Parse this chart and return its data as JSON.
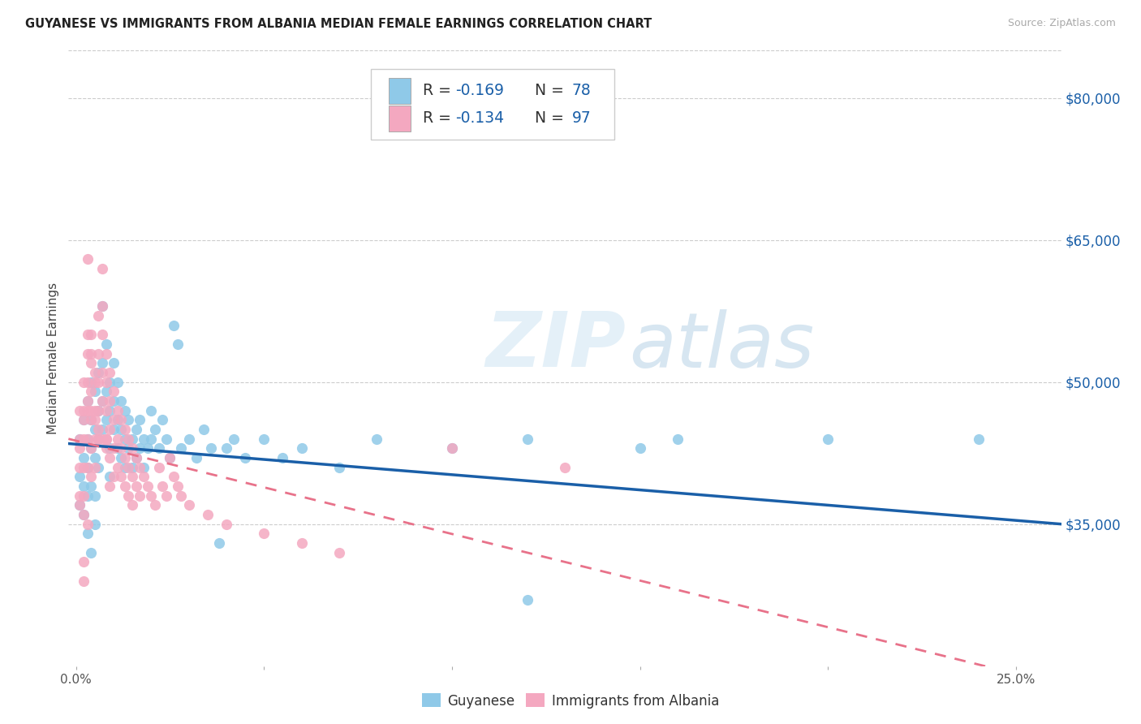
{
  "title": "GUYANESE VS IMMIGRANTS FROM ALBANIA MEDIAN FEMALE EARNINGS CORRELATION CHART",
  "source": "Source: ZipAtlas.com",
  "ylabel": "Median Female Earnings",
  "ytick_labels": [
    "$35,000",
    "$50,000",
    "$65,000",
    "$80,000"
  ],
  "ytick_vals": [
    35000,
    50000,
    65000,
    80000
  ],
  "ylim": [
    20000,
    85000
  ],
  "xlim": [
    -0.002,
    0.262
  ],
  "xtick_vals": [
    0.0,
    0.05,
    0.1,
    0.15,
    0.2,
    0.25
  ],
  "xtick_labels": [
    "0.0%",
    "",
    "",
    "",
    "",
    "25.0%"
  ],
  "legend_bottom": [
    "Guyanese",
    "Immigrants from Albania"
  ],
  "color_blue": "#8fc9e8",
  "color_pink": "#f4a8c0",
  "color_blue_line": "#1a5fa8",
  "color_pink_line": "#e8728a",
  "watermark_zip": "ZIP",
  "watermark_atlas": "atlas",
  "blue_scatter": [
    [
      0.001,
      44000
    ],
    [
      0.001,
      40000
    ],
    [
      0.001,
      37000
    ],
    [
      0.002,
      46000
    ],
    [
      0.002,
      42000
    ],
    [
      0.002,
      39000
    ],
    [
      0.002,
      36000
    ],
    [
      0.003,
      48000
    ],
    [
      0.003,
      44000
    ],
    [
      0.003,
      41000
    ],
    [
      0.003,
      38000
    ],
    [
      0.004,
      50000
    ],
    [
      0.004,
      46000
    ],
    [
      0.004,
      43000
    ],
    [
      0.004,
      39000
    ],
    [
      0.005,
      49000
    ],
    [
      0.005,
      45000
    ],
    [
      0.005,
      42000
    ],
    [
      0.005,
      38000
    ],
    [
      0.005,
      35000
    ],
    [
      0.006,
      51000
    ],
    [
      0.006,
      47000
    ],
    [
      0.006,
      44000
    ],
    [
      0.006,
      41000
    ],
    [
      0.007,
      58000
    ],
    [
      0.007,
      52000
    ],
    [
      0.007,
      48000
    ],
    [
      0.007,
      45000
    ],
    [
      0.008,
      54000
    ],
    [
      0.008,
      49000
    ],
    [
      0.008,
      46000
    ],
    [
      0.009,
      50000
    ],
    [
      0.009,
      47000
    ],
    [
      0.009,
      43000
    ],
    [
      0.009,
      40000
    ],
    [
      0.01,
      52000
    ],
    [
      0.01,
      48000
    ],
    [
      0.01,
      45000
    ],
    [
      0.011,
      50000
    ],
    [
      0.011,
      46000
    ],
    [
      0.011,
      43000
    ],
    [
      0.012,
      48000
    ],
    [
      0.012,
      45000
    ],
    [
      0.012,
      42000
    ],
    [
      0.013,
      47000
    ],
    [
      0.013,
      44000
    ],
    [
      0.013,
      41000
    ],
    [
      0.014,
      46000
    ],
    [
      0.014,
      43000
    ],
    [
      0.015,
      44000
    ],
    [
      0.015,
      41000
    ],
    [
      0.016,
      45000
    ],
    [
      0.016,
      42000
    ],
    [
      0.017,
      46000
    ],
    [
      0.017,
      43000
    ],
    [
      0.018,
      44000
    ],
    [
      0.018,
      41000
    ],
    [
      0.019,
      43000
    ],
    [
      0.02,
      47000
    ],
    [
      0.02,
      44000
    ],
    [
      0.021,
      45000
    ],
    [
      0.022,
      43000
    ],
    [
      0.023,
      46000
    ],
    [
      0.024,
      44000
    ],
    [
      0.025,
      42000
    ],
    [
      0.026,
      56000
    ],
    [
      0.027,
      54000
    ],
    [
      0.028,
      43000
    ],
    [
      0.03,
      44000
    ],
    [
      0.032,
      42000
    ],
    [
      0.034,
      45000
    ],
    [
      0.036,
      43000
    ],
    [
      0.038,
      33000
    ],
    [
      0.04,
      43000
    ],
    [
      0.042,
      44000
    ],
    [
      0.045,
      42000
    ],
    [
      0.05,
      44000
    ],
    [
      0.055,
      42000
    ],
    [
      0.06,
      43000
    ],
    [
      0.07,
      41000
    ],
    [
      0.08,
      44000
    ],
    [
      0.1,
      43000
    ],
    [
      0.12,
      44000
    ],
    [
      0.15,
      43000
    ],
    [
      0.16,
      44000
    ],
    [
      0.2,
      44000
    ],
    [
      0.24,
      44000
    ],
    [
      0.12,
      27000
    ],
    [
      0.003,
      34000
    ],
    [
      0.004,
      32000
    ]
  ],
  "pink_scatter": [
    [
      0.001,
      47000
    ],
    [
      0.001,
      44000
    ],
    [
      0.001,
      41000
    ],
    [
      0.001,
      38000
    ],
    [
      0.002,
      50000
    ],
    [
      0.002,
      47000
    ],
    [
      0.002,
      44000
    ],
    [
      0.002,
      41000
    ],
    [
      0.002,
      38000
    ],
    [
      0.003,
      63000
    ],
    [
      0.003,
      53000
    ],
    [
      0.003,
      50000
    ],
    [
      0.003,
      47000
    ],
    [
      0.003,
      44000
    ],
    [
      0.003,
      41000
    ],
    [
      0.004,
      55000
    ],
    [
      0.004,
      52000
    ],
    [
      0.004,
      49000
    ],
    [
      0.004,
      46000
    ],
    [
      0.004,
      43000
    ],
    [
      0.004,
      40000
    ],
    [
      0.005,
      50000
    ],
    [
      0.005,
      47000
    ],
    [
      0.005,
      44000
    ],
    [
      0.005,
      41000
    ],
    [
      0.006,
      57000
    ],
    [
      0.006,
      53000
    ],
    [
      0.006,
      50000
    ],
    [
      0.006,
      47000
    ],
    [
      0.006,
      44000
    ],
    [
      0.007,
      62000
    ],
    [
      0.007,
      58000
    ],
    [
      0.007,
      55000
    ],
    [
      0.007,
      51000
    ],
    [
      0.007,
      48000
    ],
    [
      0.008,
      53000
    ],
    [
      0.008,
      50000
    ],
    [
      0.008,
      47000
    ],
    [
      0.008,
      44000
    ],
    [
      0.009,
      51000
    ],
    [
      0.009,
      48000
    ],
    [
      0.009,
      45000
    ],
    [
      0.009,
      42000
    ],
    [
      0.009,
      39000
    ],
    [
      0.01,
      49000
    ],
    [
      0.01,
      46000
    ],
    [
      0.01,
      43000
    ],
    [
      0.01,
      40000
    ],
    [
      0.011,
      47000
    ],
    [
      0.011,
      44000
    ],
    [
      0.011,
      41000
    ],
    [
      0.012,
      46000
    ],
    [
      0.012,
      43000
    ],
    [
      0.012,
      40000
    ],
    [
      0.013,
      45000
    ],
    [
      0.013,
      42000
    ],
    [
      0.013,
      39000
    ],
    [
      0.014,
      44000
    ],
    [
      0.014,
      41000
    ],
    [
      0.014,
      38000
    ],
    [
      0.015,
      43000
    ],
    [
      0.015,
      40000
    ],
    [
      0.015,
      37000
    ],
    [
      0.016,
      42000
    ],
    [
      0.016,
      39000
    ],
    [
      0.017,
      41000
    ],
    [
      0.017,
      38000
    ],
    [
      0.018,
      40000
    ],
    [
      0.019,
      39000
    ],
    [
      0.02,
      38000
    ],
    [
      0.021,
      37000
    ],
    [
      0.022,
      41000
    ],
    [
      0.023,
      39000
    ],
    [
      0.024,
      38000
    ],
    [
      0.025,
      42000
    ],
    [
      0.026,
      40000
    ],
    [
      0.027,
      39000
    ],
    [
      0.028,
      38000
    ],
    [
      0.03,
      37000
    ],
    [
      0.035,
      36000
    ],
    [
      0.04,
      35000
    ],
    [
      0.05,
      34000
    ],
    [
      0.06,
      33000
    ],
    [
      0.07,
      32000
    ],
    [
      0.002,
      31000
    ],
    [
      0.002,
      29000
    ],
    [
      0.003,
      55000
    ],
    [
      0.004,
      53000
    ],
    [
      0.005,
      51000
    ],
    [
      0.008,
      44000
    ],
    [
      0.001,
      43000
    ],
    [
      0.002,
      46000
    ],
    [
      0.1,
      43000
    ],
    [
      0.13,
      41000
    ],
    [
      0.003,
      48000
    ],
    [
      0.004,
      47000
    ],
    [
      0.005,
      46000
    ],
    [
      0.006,
      45000
    ],
    [
      0.007,
      44000
    ],
    [
      0.008,
      43000
    ],
    [
      0.001,
      37000
    ],
    [
      0.002,
      36000
    ],
    [
      0.003,
      35000
    ]
  ]
}
